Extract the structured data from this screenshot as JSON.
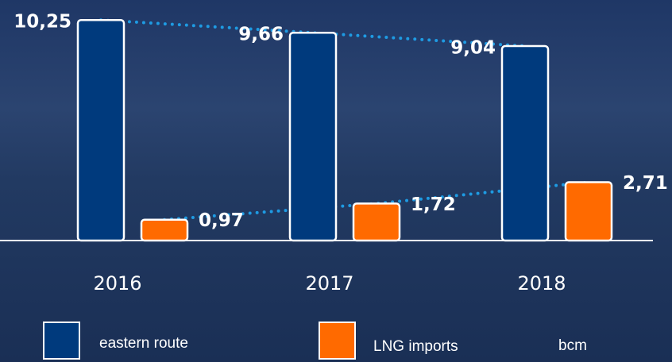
{
  "chart_data": {
    "type": "bar",
    "categories": [
      "2016",
      "2017",
      "2018"
    ],
    "series": [
      {
        "name": "eastern route",
        "color": "#003a7d",
        "values": [
          10.25,
          9.66,
          9.04
        ],
        "value_labels": [
          "10,25",
          "9,66",
          "9,04"
        ]
      },
      {
        "name": "LNG imports",
        "color": "#ff6a00",
        "values": [
          0.97,
          1.72,
          2.71
        ],
        "value_labels": [
          "0,97",
          "1,72",
          "2,71"
        ]
      }
    ],
    "unit": "bcm",
    "trend_color": "#1e9be3"
  }
}
